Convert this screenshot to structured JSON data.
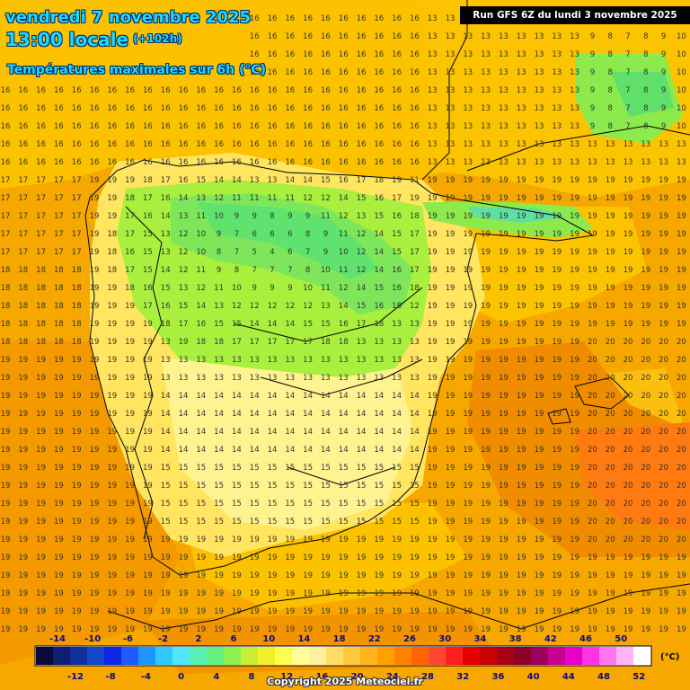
{
  "header": {
    "date": "vendredi 7 novembre 2025",
    "time": "13:00 locale",
    "offset": "(+102h)",
    "subtitle": "Températures maximales sur 6h (°C)"
  },
  "run_info": "Run GFS 6Z du lundi 3 novembre 2025",
  "copyright": "Copyright 2025 Meteociel.fr",
  "legend": {
    "unit": "(°C)",
    "top_labels": [
      "-14",
      "-10",
      "-6",
      "-2",
      "2",
      "6",
      "10",
      "14",
      "18",
      "22",
      "26",
      "30",
      "34",
      "38",
      "42",
      "46",
      "50"
    ],
    "bottom_labels": [
      "-12",
      "-8",
      "-4",
      "0",
      "4",
      "8",
      "12",
      "16",
      "20",
      "24",
      "28",
      "32",
      "36",
      "40",
      "44",
      "48",
      "52"
    ],
    "colors": [
      "#0a0a3c",
      "#0f1e6e",
      "#10309a",
      "#1448c8",
      "#0a28e6",
      "#1e5aff",
      "#1e96ff",
      "#32c8ff",
      "#50e6ff",
      "#5af0b4",
      "#64f080",
      "#8cf050",
      "#c8f032",
      "#f0f028",
      "#ffff50",
      "#ffff96",
      "#fff0a0",
      "#ffdc64",
      "#ffc83c",
      "#ffb41e",
      "#ffa000",
      "#ff8200",
      "#ff6400",
      "#ff4632",
      "#ff1e1e",
      "#e60000",
      "#c80000",
      "#aa0014",
      "#8c0028",
      "#a0005a",
      "#c8008c",
      "#e600c8",
      "#ff32e6",
      "#ff78f0",
      "#ffb4f8",
      "#ffffff"
    ]
  },
  "map": {
    "description_colors": {
      "sea_warm": "#f6a800",
      "sea_mild": "#fcc400",
      "land_cool": "#ffe870",
      "land_cold": "#a8f040",
      "land_coldest": "#60e670",
      "hot": "#ff7e00",
      "border": "#000000"
    }
  }
}
